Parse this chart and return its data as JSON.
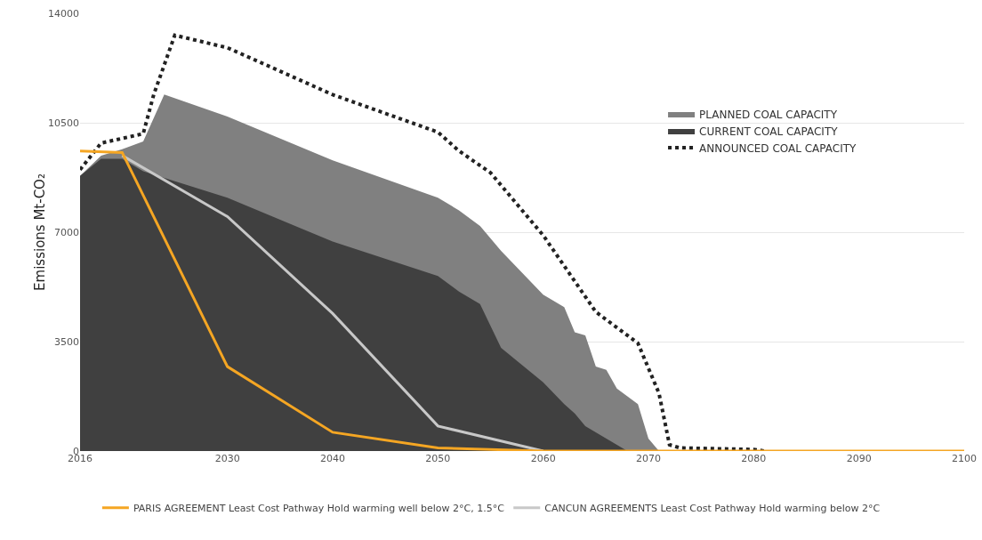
{
  "chart_data": {
    "type": "area",
    "ylabel": "Emissions Mt-CO₂",
    "xlim": [
      2016,
      2100
    ],
    "xticks": [
      2016,
      2030,
      2040,
      2050,
      2060,
      2070,
      2080,
      2090,
      2100
    ],
    "ylim": [
      0,
      14000
    ],
    "yticks": [
      0,
      3500,
      7000,
      10500,
      14000
    ],
    "grid": "y",
    "legend": "right",
    "series": [
      {
        "name": "PLANNED COAL CAPACITY",
        "type": "area",
        "color": "#808080",
        "x": [
          2016,
          2018,
          2020,
          2022,
          2024,
          2030,
          2040,
          2050,
          2052,
          2054,
          2056,
          2060,
          2062,
          2063,
          2064,
          2065,
          2066,
          2067,
          2068,
          2069,
          2070,
          2071
        ],
        "values": [
          8800,
          9450,
          9650,
          9900,
          11400,
          10700,
          9300,
          8100,
          7700,
          7200,
          6400,
          5000,
          4600,
          3800,
          3700,
          2700,
          2600,
          2000,
          1750,
          1500,
          400,
          0
        ]
      },
      {
        "name": "CURRENT COAL CAPACITY",
        "type": "area",
        "color": "#404040",
        "x": [
          2016,
          2018,
          2020,
          2022,
          2030,
          2040,
          2050,
          2052,
          2054,
          2056,
          2060,
          2062,
          2063,
          2064,
          2066,
          2067,
          2068
        ],
        "values": [
          8800,
          9350,
          9350,
          8950,
          8100,
          6700,
          5600,
          5100,
          4700,
          3300,
          2200,
          1500,
          1200,
          800,
          400,
          200,
          0
        ]
      },
      {
        "name": "ANNOUNCED COAL CAPACITY",
        "type": "line",
        "color": "#222222",
        "line_style": "dotted",
        "x": [
          2016,
          2018,
          2020,
          2022,
          2023,
          2025,
          2030,
          2040,
          2050,
          2052,
          2055,
          2060,
          2065,
          2069,
          2071,
          2072,
          2073,
          2080,
          2081
        ],
        "values": [
          9000,
          9850,
          10000,
          10150,
          11400,
          13300,
          12900,
          11400,
          10200,
          9600,
          8900,
          6900,
          4450,
          3450,
          1850,
          200,
          100,
          50,
          0
        ]
      },
      {
        "name": "CANCUN AGREEMENTS Least Cost Pathway Hold warming below 2°C",
        "type": "line",
        "color": "#c8c8c8",
        "line_style": "solid",
        "x": [
          2020,
          2030,
          2040,
          2050,
          2060
        ],
        "values": [
          9450,
          7500,
          4400,
          800,
          0
        ]
      },
      {
        "name": "PARIS AGREEMENT Least Cost Pathway Hold warming well below 2°C, 1.5°C",
        "type": "line",
        "color": "#f5a623",
        "line_style": "solid",
        "x": [
          2016,
          2020,
          2030,
          2040,
          2050,
          2060,
          2100
        ],
        "values": [
          9600,
          9550,
          2700,
          600,
          100,
          0,
          0
        ]
      }
    ]
  }
}
